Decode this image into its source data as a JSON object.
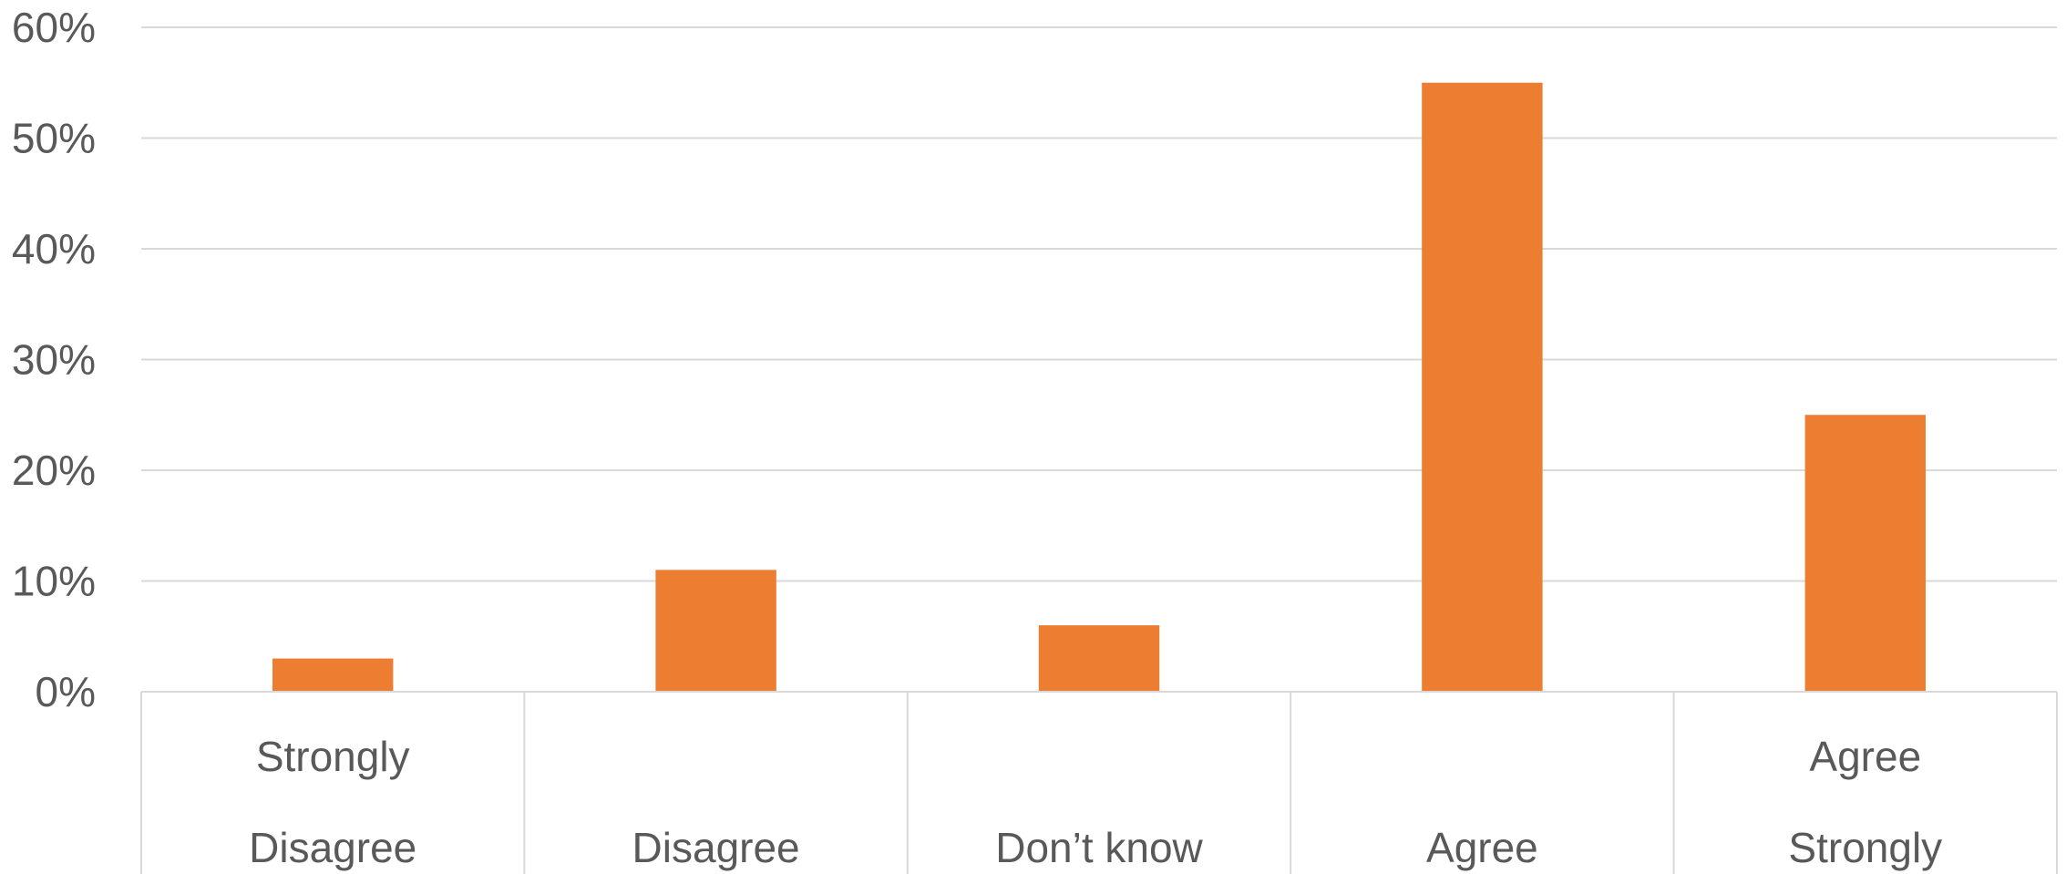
{
  "chart_data": {
    "type": "bar",
    "title": "",
    "xlabel": "",
    "ylabel": "",
    "categories": [
      [
        "Strongly",
        "Disagree"
      ],
      [
        "Disagree"
      ],
      [
        "Don’t know"
      ],
      [
        "Agree"
      ],
      [
        "Agree",
        "Strongly"
      ]
    ],
    "values": [
      3,
      11,
      6,
      55,
      25
    ],
    "ylim": [
      0,
      60
    ],
    "yticks": [
      "0%",
      "10%",
      "20%",
      "30%",
      "40%",
      "50%",
      "60%"
    ],
    "grid": true,
    "legend": "none",
    "bar_color": "#ED7D31",
    "grid_color": "#D9D9D9"
  }
}
